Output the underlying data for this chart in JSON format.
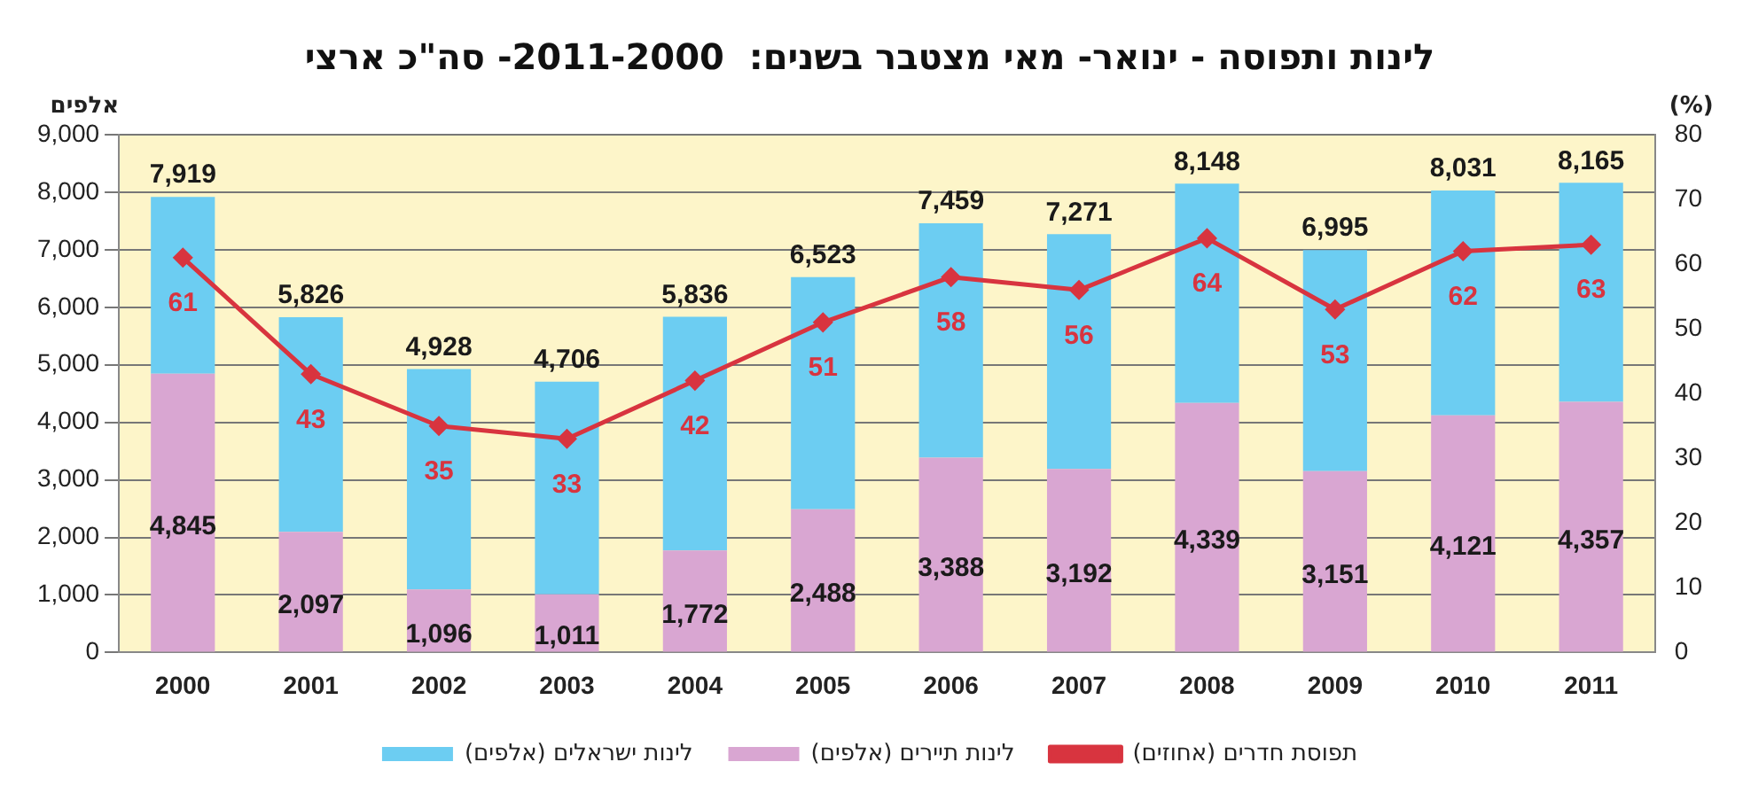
{
  "chart_data": {
    "type": "bar",
    "title": "לינות ותפוסה - ינואר- מאי מצטבר בשנים:  2011-2000- סה\"כ ארצי",
    "ylabel": "אלפים",
    "y2label": "(%)",
    "categories": [
      "2000",
      "2001",
      "2002",
      "2003",
      "2004",
      "2005",
      "2006",
      "2007",
      "2008",
      "2009",
      "2010",
      "2011"
    ],
    "stacked": true,
    "series": [
      {
        "name": "לינות תיירים (אלפים)",
        "color": "#d9a6d2",
        "values": [
          4845,
          2097,
          1096,
          1011,
          1772,
          2488,
          3388,
          3192,
          4339,
          3151,
          4121,
          4357
        ],
        "value_labels": [
          "4,845",
          "2,097",
          "1,096",
          "1,011",
          "1,772",
          "2,488",
          "3,388",
          "3,192",
          "4,339",
          "3,151",
          "4,121",
          "4,357"
        ]
      },
      {
        "name": "לינות ישראלים (אלפים)",
        "color": "#6ccdf2",
        "values": [
          3074,
          3729,
          3832,
          3695,
          4064,
          4035,
          4071,
          4079,
          3809,
          3844,
          3910,
          3808
        ]
      },
      {
        "name": "תפוסת חדרים (אחוזים)",
        "type": "line",
        "axis": "y2",
        "color": "#d8343f",
        "marker": "diamond",
        "values": [
          61,
          43,
          35,
          33,
          42,
          51,
          58,
          56,
          64,
          53,
          62,
          63
        ],
        "value_labels": [
          "61",
          "43",
          "35",
          "33",
          "42",
          "51",
          "58",
          "56",
          "64",
          "53",
          "62",
          "63"
        ]
      }
    ],
    "totals": [
      "7,919",
      "5,826",
      "4,928",
      "4,706",
      "5,836",
      "6,523",
      "7,459",
      "7,271",
      "8,148",
      "6,995",
      "8,031",
      "8,165"
    ],
    "ylim": [
      0,
      9000
    ],
    "yticks": [
      0,
      {
        "value": 1000,
        "label": "1,000"
      },
      {
        "value": 2000,
        "label": "2,000"
      },
      {
        "value": 3000,
        "label": "3,000"
      },
      {
        "value": 4000,
        "label": "4,000"
      },
      {
        "value": 5000,
        "label": "5,000"
      },
      {
        "value": 6000,
        "label": "6,000"
      },
      {
        "value": 7000,
        "label": "7,000"
      },
      {
        "value": 8000,
        "label": "8,000"
      },
      {
        "value": 9000,
        "label": "9,000"
      }
    ],
    "y2lim": [
      0,
      80
    ],
    "y2ticks": [
      0,
      10,
      20,
      30,
      40,
      50,
      60,
      70,
      80
    ],
    "grid": "y",
    "legend": "bottom"
  }
}
